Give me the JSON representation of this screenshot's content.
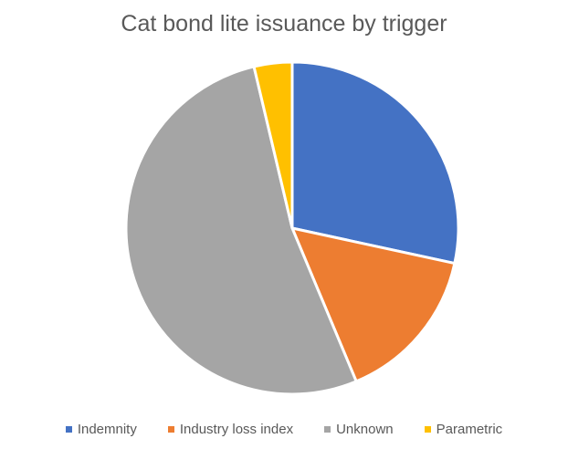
{
  "chart_data": {
    "type": "pie",
    "title": "Cat bond lite issuance by trigger",
    "categories": [
      "Indemnity",
      "Industry loss index",
      "Unknown",
      "Parametric"
    ],
    "values": [
      28.4,
      15.3,
      52.6,
      3.7
    ],
    "unit": "%",
    "colors": [
      "#4472C4",
      "#ED7D31",
      "#A5A5A5",
      "#FFC000"
    ],
    "legend_position": "bottom",
    "start_angle": 0,
    "direction": "clockwise"
  }
}
